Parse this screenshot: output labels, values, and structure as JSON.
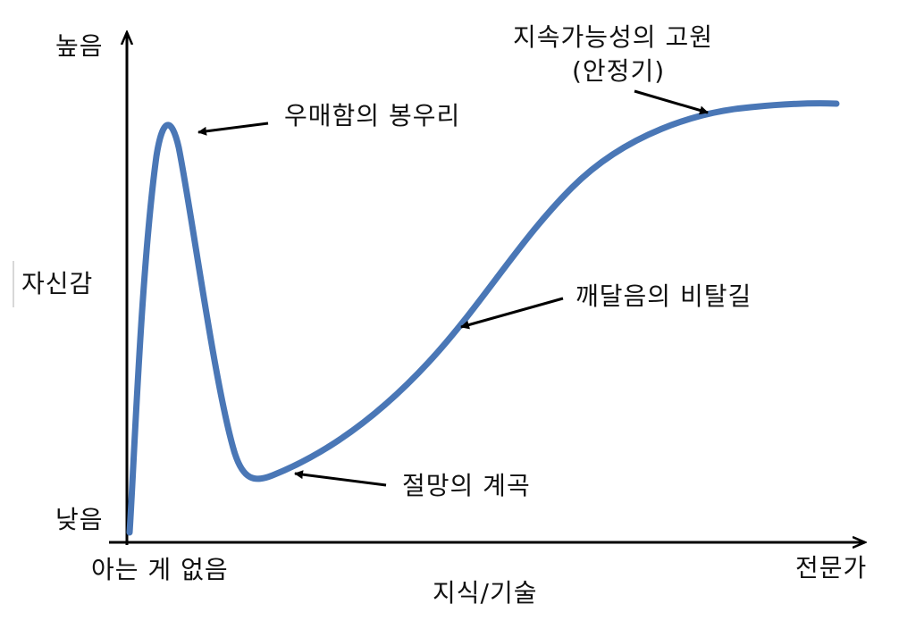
{
  "diagram": {
    "y_axis": {
      "label": "자신감",
      "high": "높음",
      "low": "낮음"
    },
    "x_axis": {
      "label": "지식/기술",
      "start": "아는 게 없음",
      "end": "전문가"
    },
    "annotations": {
      "peak": "우매함의 봉우리",
      "valley": "절망의 계곡",
      "slope": "깨달음의 비탈길",
      "plateau_line1": "지속가능성의 고원",
      "plateau_line2": "(안정기)"
    },
    "curve_color": "#4a77b6",
    "axis_color": "#000000"
  }
}
